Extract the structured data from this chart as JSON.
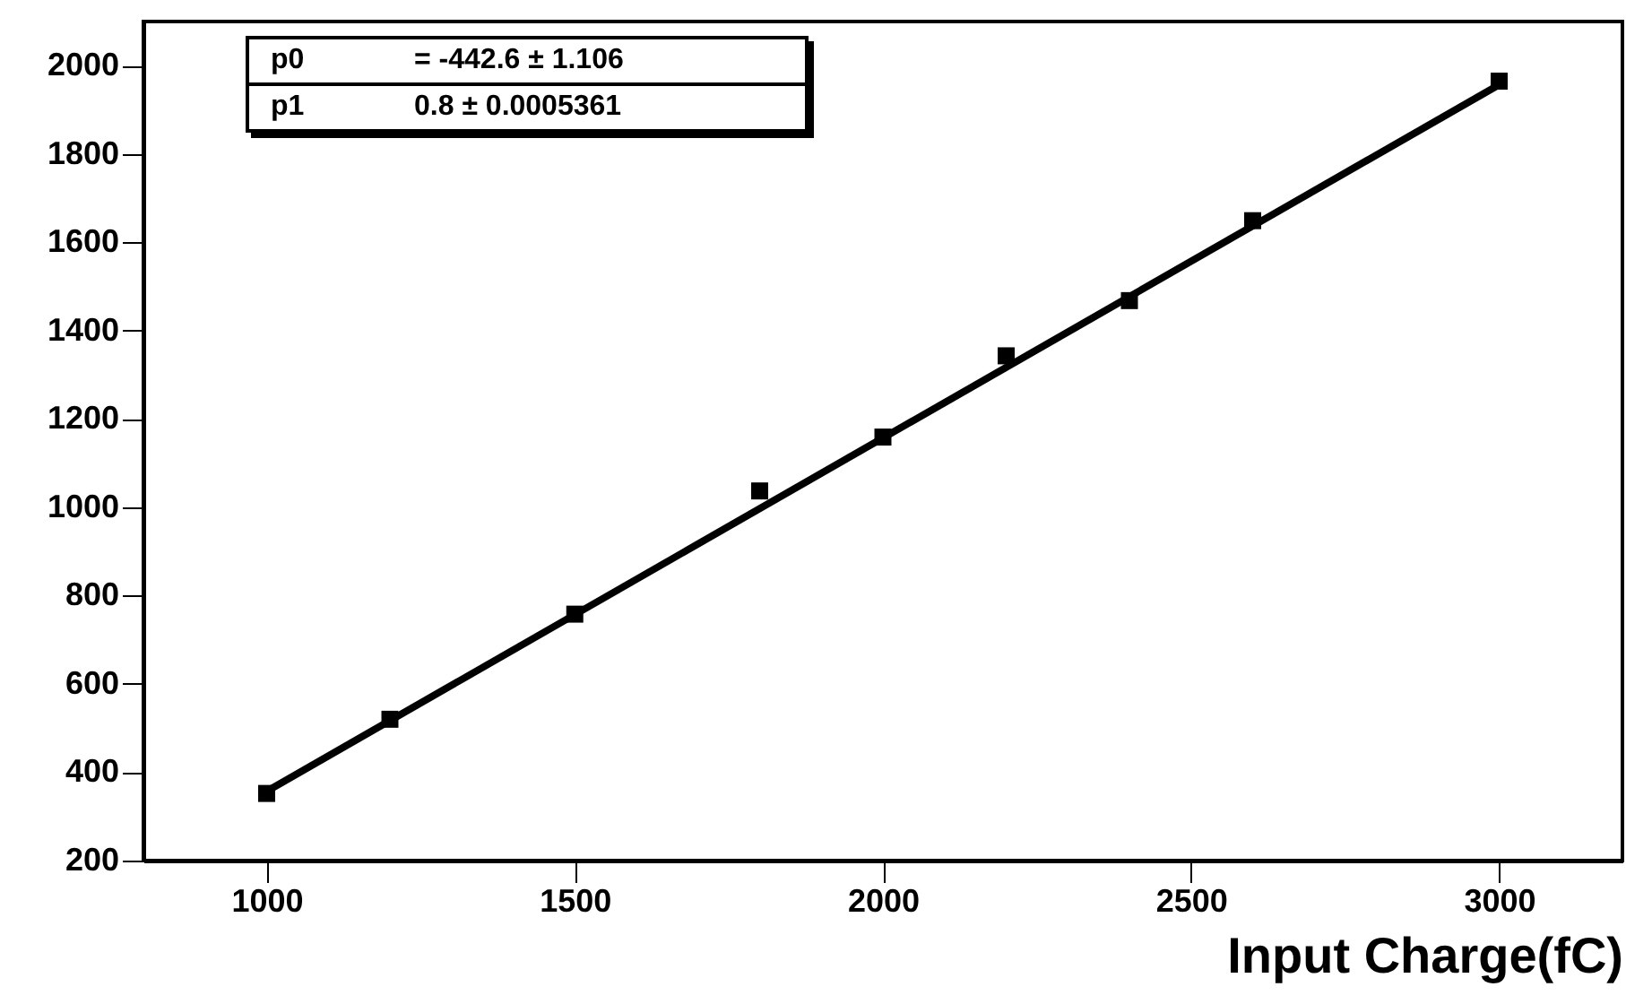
{
  "chart_data": {
    "type": "scatter",
    "xlabel": "Input Charge(fC)",
    "xlim": [
      800,
      3200
    ],
    "xticks": [
      1000,
      1500,
      2000,
      2500,
      3000
    ],
    "ylim": [
      200,
      2100
    ],
    "yticks": [
      200,
      400,
      600,
      800,
      1000,
      1200,
      1400,
      1600,
      1800,
      2000
    ],
    "grid": false,
    "marker": "square",
    "annotations": [
      "p0",
      "= -442.6 ± 1.106",
      "p1",
      "0.8 ± 0.0005361"
    ],
    "series": [
      {
        "color": "#000000",
        "x": [
          1000,
          1200,
          1500,
          1800,
          2000,
          2200,
          2400,
          2600,
          3000
        ],
        "values": [
          352,
          520,
          758,
          1037,
          1159,
          1343,
          1468,
          1649,
          1965
        ]
      },
      {
        "type": "line",
        "color": "#000000",
        "marker": "none",
        "x": [
          1000,
          3000
        ],
        "values": [
          357,
          1957
        ]
      }
    ]
  }
}
